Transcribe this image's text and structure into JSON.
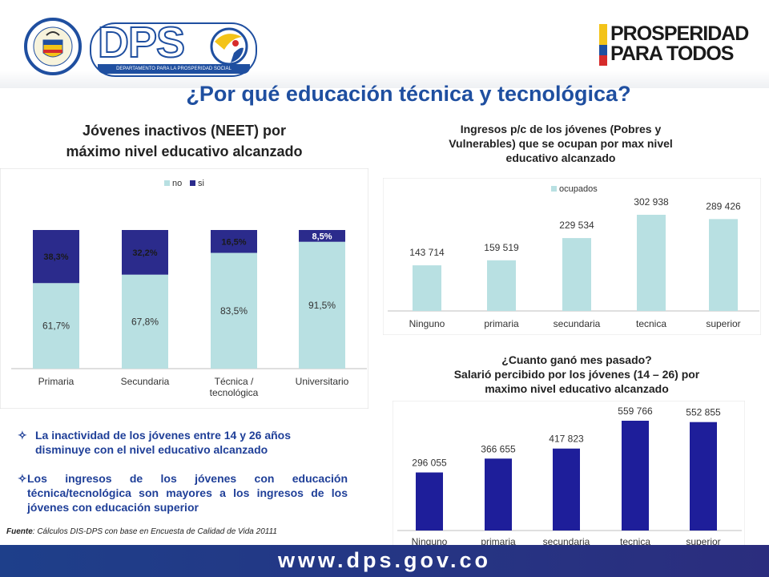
{
  "header": {
    "seal_text": "REPÚBLICA DE COLOMBIA",
    "dps_logo_text": "DPS",
    "dps_subtitle": "DEPARTAMENTO PARA LA PROSPERIDAD SOCIAL",
    "slogan_line1": "PROSPERIDAD",
    "slogan_line2": "PARA TODOS"
  },
  "title": "¿Por qué educación técnica y tecnológica?",
  "colors": {
    "light": "#b8e0e2",
    "dark": "#2b2b8c",
    "navy": "#1e1e9a",
    "title": "#1f4fa0"
  },
  "chart_data": [
    {
      "type": "bar",
      "stacked": true,
      "title": "Jóvenes inactivos (NEET) por máximo nivel educativo alcanzado",
      "title_lines": [
        "Jóvenes inactivos (NEET) por",
        "máximo nivel educativo alcanzado"
      ],
      "legend": [
        "no",
        "si"
      ],
      "legend_position": "top",
      "categories": [
        "Primaria",
        "Secundaria",
        "Técnica / tecnológica",
        "Universitario"
      ],
      "category_lines": [
        [
          "Primaria"
        ],
        [
          "Secundaria"
        ],
        [
          "Técnica /",
          "tecnológica"
        ],
        [
          "Universitario"
        ]
      ],
      "series": [
        {
          "name": "no",
          "values": [
            61.7,
            67.8,
            83.5,
            91.5
          ],
          "labels": [
            "61,7%",
            "67,8%",
            "83,5%",
            "91,5%"
          ]
        },
        {
          "name": "si",
          "values": [
            38.3,
            32.2,
            16.5,
            8.5
          ],
          "labels": [
            "38,3%",
            "32,2%",
            "16,5%",
            "8,5%"
          ]
        }
      ],
      "ylim": [
        0,
        100
      ]
    },
    {
      "type": "bar",
      "title": "Ingresos p/c de los jóvenes (Pobres y Vulnerables) que se ocupan por max nivel educativo alcanzado",
      "title_lines": [
        "Ingresos p/c de los jóvenes  (Pobres y",
        "Vulnerables) que se ocupan por max nivel",
        "educativo alcanzado"
      ],
      "legend": [
        "ocupados"
      ],
      "legend_position": "top-left",
      "categories": [
        "Ninguno",
        "primaria",
        "secundaria",
        "tecnica",
        "superior"
      ],
      "series": [
        {
          "name": "ocupados",
          "values": [
            143714,
            159519,
            229534,
            302938,
            289426
          ],
          "labels": [
            "143 714",
            "159 519",
            "229 534",
            "302 938",
            "289 426"
          ]
        }
      ],
      "ylim": [
        0,
        320000
      ]
    },
    {
      "type": "bar",
      "title": "¿Cuanto ganó mes pasado? Salarió percibido por los jóvenes (14 – 26) por maximo nivel educativo alcanzado",
      "title_lines": [
        "¿Cuanto ganó mes pasado?",
        "Salarió percibido por los jóvenes (14 – 26) por",
        "maximo nivel educativo alcanzado"
      ],
      "categories": [
        "Ninguno",
        "primaria",
        "secundaria",
        "tecnica",
        "superior"
      ],
      "series": [
        {
          "values": [
            296055,
            366655,
            417823,
            559766,
            552855
          ],
          "labels": [
            "296 055",
            "366 655",
            "417 823",
            "559 766",
            "552 855"
          ]
        }
      ],
      "ylim": [
        0,
        580000
      ]
    }
  ],
  "bullets": [
    "La inactividad de los jóvenes entre 14 y 26 años disminuye con el nivel educativo alcanzado",
    "Los ingresos de los jóvenes con educación técnica/tecnológica son mayores a los ingresos de los jóvenes con educación superior"
  ],
  "source": {
    "label": "Fuente",
    "text": ": Cálculos DIS-DPS con base en Encuesta de Calidad de Vida 20111"
  },
  "footer": "www.dps.gov.co"
}
